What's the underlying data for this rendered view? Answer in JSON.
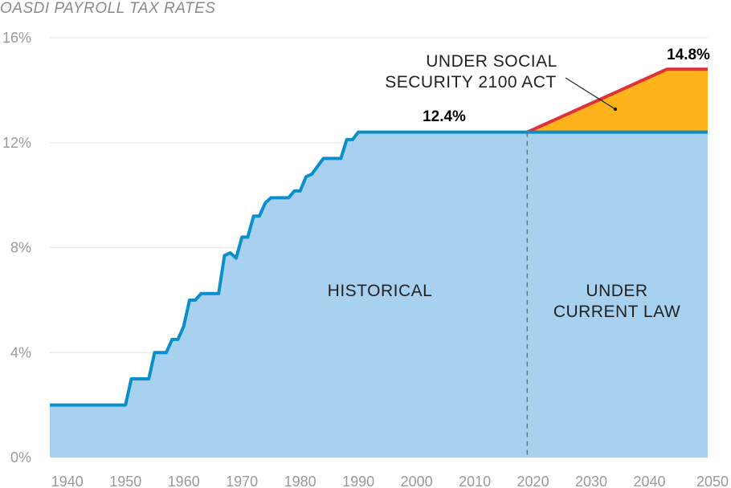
{
  "chart_data": {
    "type": "area",
    "title": "OASDI PAYROLL TAX RATES",
    "xlabel": "",
    "ylabel": "",
    "xlim": [
      1937,
      2050
    ],
    "ylim": [
      0,
      16
    ],
    "x_ticks": [
      "1940",
      "1950",
      "1960",
      "1970",
      "1980",
      "1990",
      "2000",
      "2010",
      "2020",
      "2030",
      "2040",
      "2050"
    ],
    "y_ticks": [
      "0%",
      "4%",
      "8%",
      "12%",
      "16%"
    ],
    "grid": true,
    "series": [
      {
        "color": "#0a8fcc",
        "fill": "#a8d1f0",
        "points": [
          [
            1937,
            2.0
          ],
          [
            1950,
            2.0
          ],
          [
            1951,
            3.0
          ],
          [
            1954,
            3.0
          ],
          [
            1955,
            4.0
          ],
          [
            1957,
            4.0
          ],
          [
            1958,
            4.5
          ],
          [
            1959,
            4.5
          ],
          [
            1960,
            5.0
          ],
          [
            1961,
            6.0
          ],
          [
            1962,
            6.0
          ],
          [
            1963,
            6.25
          ],
          [
            1966,
            6.25
          ],
          [
            1967,
            7.7
          ],
          [
            1968,
            7.8
          ],
          [
            1969,
            7.6
          ],
          [
            1970,
            8.4
          ],
          [
            1971,
            8.4
          ],
          [
            1972,
            9.2
          ],
          [
            1973,
            9.2
          ],
          [
            1974,
            9.7
          ],
          [
            1975,
            9.9
          ],
          [
            1978,
            9.9
          ],
          [
            1979,
            10.16
          ],
          [
            1980,
            10.16
          ],
          [
            1981,
            10.7
          ],
          [
            1982,
            10.8
          ],
          [
            1984,
            11.4
          ],
          [
            1987,
            11.4
          ],
          [
            1988,
            12.12
          ],
          [
            1989,
            12.12
          ],
          [
            1990,
            12.4
          ],
          [
            2050,
            12.4
          ]
        ]
      },
      {
        "color": "#e03139",
        "fill": "#fdb319",
        "points": [
          [
            2019,
            12.4
          ],
          [
            2043,
            14.8
          ],
          [
            2050,
            14.8
          ]
        ]
      }
    ],
    "divider_x": 2019,
    "annotations": {
      "historical": "HISTORICAL",
      "current_law_line1": "UNDER",
      "current_law_line2": "CURRENT LAW",
      "act_line1": "UNDER SOCIAL",
      "act_line2": "SECURITY 2100 ACT",
      "value_current": "12.4%",
      "value_act": "14.8%"
    }
  }
}
